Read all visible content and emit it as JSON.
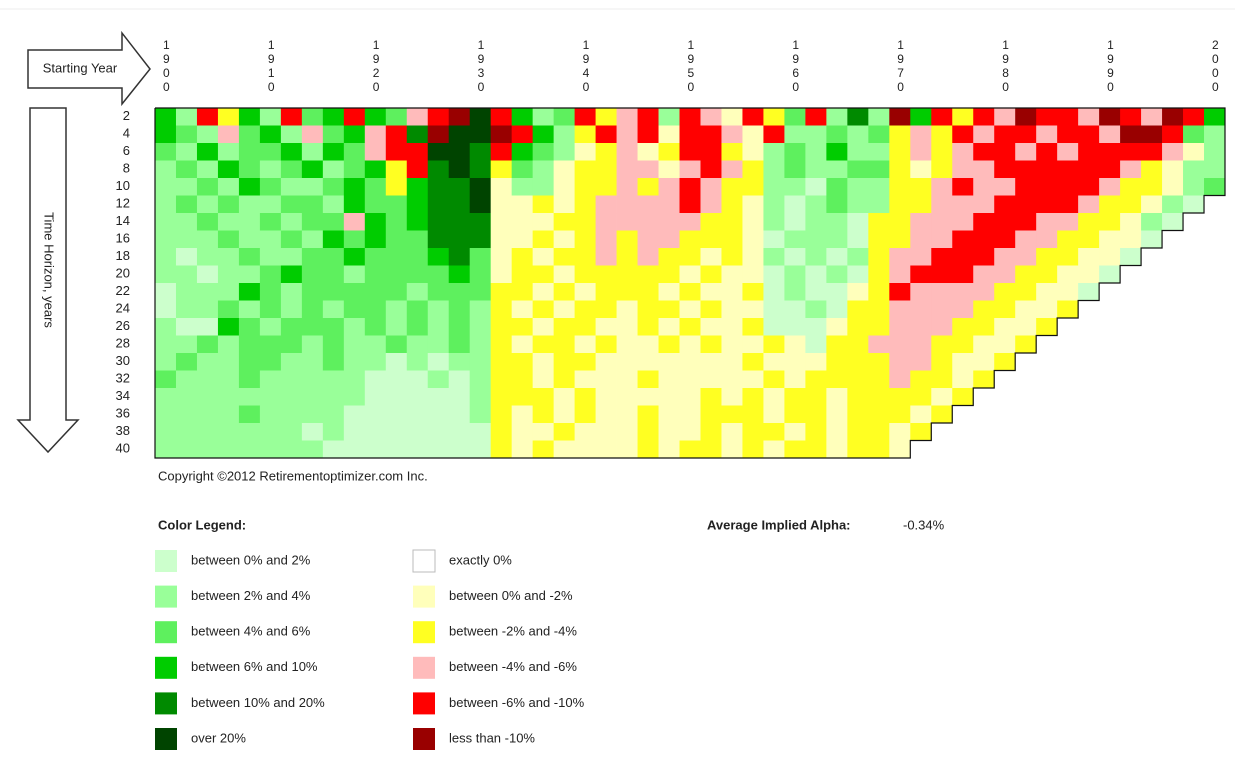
{
  "chart_data": {
    "type": "heatmap",
    "x_label": "Starting Year",
    "y_label": "Time Horizon, years",
    "xlim": [
      1900,
      2002
    ],
    "xticks": [
      1900,
      1910,
      1920,
      1930,
      1940,
      1950,
      1960,
      1970,
      1980,
      1990,
      2000
    ],
    "x": [
      1900,
      1902,
      1904,
      1906,
      1908,
      1910,
      1912,
      1914,
      1916,
      1918,
      1920,
      1922,
      1924,
      1926,
      1928,
      1930,
      1932,
      1934,
      1936,
      1938,
      1940,
      1942,
      1944,
      1946,
      1948,
      1950,
      1952,
      1954,
      1956,
      1958,
      1960,
      1962,
      1964,
      1966,
      1968,
      1970,
      1972,
      1974,
      1976,
      1978,
      1980,
      1982,
      1984,
      1986,
      1988,
      1990,
      1992,
      1994,
      1996,
      1998,
      2000
    ],
    "rows": [
      {
        "horizon": 2,
        "values": [
          3,
          1,
          10,
          8,
          3,
          1,
          10,
          2,
          3,
          10,
          3,
          2,
          9,
          10,
          11,
          5,
          10,
          3,
          1,
          2,
          10,
          8,
          9,
          10,
          1,
          10,
          9,
          7,
          10,
          8,
          2,
          10,
          1,
          4,
          1,
          11,
          3,
          10,
          8,
          10,
          9,
          11,
          10,
          10,
          9,
          11,
          10,
          9,
          11,
          10,
          3
        ]
      },
      {
        "horizon": 4,
        "values": [
          3,
          2,
          1,
          9,
          2,
          3,
          1,
          9,
          2,
          3,
          9,
          10,
          4,
          11,
          5,
          5,
          11,
          10,
          3,
          1,
          8,
          10,
          9,
          10,
          7,
          10,
          10,
          9,
          7,
          10,
          1,
          1,
          2,
          1,
          2,
          8,
          9,
          8,
          10,
          9,
          10,
          10,
          9,
          10,
          10,
          9,
          11,
          11,
          10,
          2,
          1
        ]
      },
      {
        "horizon": 6,
        "values": [
          2,
          1,
          3,
          1,
          2,
          2,
          3,
          1,
          3,
          2,
          9,
          10,
          10,
          5,
          5,
          4,
          10,
          3,
          2,
          1,
          7,
          8,
          9,
          7,
          8,
          10,
          10,
          8,
          7,
          1,
          2,
          1,
          3,
          1,
          1,
          8,
          9,
          8,
          9,
          10,
          10,
          9,
          10,
          9,
          10,
          10,
          10,
          10,
          9,
          7,
          1
        ]
      },
      {
        "horizon": 8,
        "values": [
          1,
          2,
          1,
          3,
          2,
          1,
          2,
          3,
          1,
          2,
          3,
          8,
          10,
          4,
          5,
          4,
          8,
          2,
          1,
          7,
          8,
          8,
          9,
          9,
          7,
          9,
          10,
          9,
          8,
          1,
          2,
          1,
          1,
          2,
          2,
          8,
          7,
          8,
          9,
          9,
          10,
          10,
          10,
          10,
          10,
          10,
          9,
          8,
          7,
          1,
          1
        ]
      },
      {
        "horizon": 10,
        "values": [
          1,
          1,
          2,
          1,
          3,
          2,
          1,
          1,
          2,
          3,
          2,
          8,
          3,
          4,
          4,
          5,
          7,
          1,
          1,
          7,
          8,
          8,
          9,
          8,
          9,
          10,
          9,
          8,
          8,
          1,
          1,
          0,
          2,
          1,
          1,
          8,
          8,
          9,
          10,
          9,
          9,
          10,
          10,
          10,
          10,
          9,
          8,
          8,
          7,
          1,
          2
        ]
      },
      {
        "horizon": 12,
        "values": [
          1,
          2,
          1,
          2,
          1,
          1,
          2,
          2,
          1,
          3,
          2,
          2,
          3,
          4,
          4,
          5,
          7,
          7,
          8,
          7,
          8,
          9,
          9,
          9,
          9,
          10,
          9,
          8,
          7,
          1,
          0,
          1,
          2,
          1,
          1,
          8,
          8,
          9,
          9,
          9,
          10,
          10,
          10,
          10,
          9,
          8,
          8,
          7,
          1,
          0
        ]
      },
      {
        "horizon": 14,
        "values": [
          1,
          1,
          2,
          1,
          1,
          2,
          1,
          2,
          2,
          9,
          3,
          2,
          3,
          4,
          4,
          4,
          7,
          7,
          7,
          8,
          8,
          9,
          9,
          9,
          9,
          9,
          8,
          8,
          7,
          1,
          0,
          1,
          1,
          0,
          8,
          8,
          9,
          9,
          9,
          10,
          10,
          10,
          9,
          9,
          8,
          8,
          7,
          1,
          0
        ]
      },
      {
        "horizon": 16,
        "values": [
          1,
          1,
          1,
          2,
          1,
          1,
          2,
          1,
          3,
          2,
          3,
          2,
          2,
          4,
          4,
          4,
          7,
          7,
          8,
          7,
          8,
          9,
          8,
          9,
          9,
          8,
          8,
          8,
          7,
          0,
          1,
          1,
          1,
          0,
          8,
          8,
          9,
          9,
          10,
          10,
          10,
          9,
          9,
          8,
          8,
          7,
          7,
          0
        ]
      },
      {
        "horizon": 18,
        "values": [
          1,
          0,
          1,
          1,
          2,
          1,
          1,
          2,
          2,
          3,
          2,
          2,
          2,
          3,
          4,
          2,
          7,
          8,
          7,
          8,
          8,
          9,
          8,
          9,
          8,
          8,
          7,
          8,
          7,
          1,
          0,
          1,
          0,
          1,
          8,
          9,
          9,
          10,
          10,
          10,
          9,
          9,
          8,
          8,
          7,
          7,
          0
        ]
      },
      {
        "horizon": 20,
        "values": [
          1,
          1,
          0,
          1,
          1,
          2,
          3,
          2,
          2,
          1,
          2,
          2,
          2,
          2,
          3,
          2,
          7,
          8,
          8,
          7,
          8,
          8,
          8,
          8,
          8,
          7,
          8,
          7,
          7,
          0,
          1,
          0,
          1,
          0,
          8,
          9,
          10,
          10,
          10,
          9,
          9,
          8,
          8,
          7,
          7,
          0
        ]
      },
      {
        "horizon": 22,
        "values": [
          0,
          1,
          1,
          1,
          3,
          2,
          1,
          2,
          2,
          2,
          2,
          2,
          1,
          2,
          2,
          2,
          8,
          8,
          7,
          8,
          7,
          8,
          8,
          8,
          7,
          8,
          7,
          7,
          8,
          0,
          1,
          0,
          0,
          7,
          8,
          10,
          9,
          9,
          9,
          9,
          8,
          8,
          7,
          7,
          0
        ]
      },
      {
        "horizon": 24,
        "values": [
          0,
          1,
          1,
          2,
          1,
          2,
          1,
          2,
          1,
          2,
          2,
          1,
          2,
          1,
          2,
          1,
          8,
          7,
          8,
          7,
          8,
          8,
          7,
          8,
          8,
          7,
          8,
          7,
          7,
          0,
          0,
          1,
          0,
          8,
          8,
          9,
          9,
          9,
          9,
          8,
          8,
          7,
          7,
          8
        ]
      },
      {
        "horizon": 26,
        "values": [
          1,
          0,
          0,
          3,
          2,
          1,
          2,
          2,
          2,
          1,
          2,
          1,
          2,
          1,
          2,
          1,
          8,
          8,
          7,
          8,
          8,
          7,
          7,
          8,
          7,
          8,
          7,
          7,
          8,
          0,
          0,
          0,
          7,
          8,
          8,
          9,
          9,
          9,
          8,
          8,
          7,
          7,
          8
        ]
      },
      {
        "horizon": 28,
        "values": [
          1,
          1,
          2,
          1,
          2,
          2,
          2,
          1,
          2,
          1,
          1,
          2,
          1,
          1,
          2,
          1,
          8,
          7,
          8,
          8,
          7,
          8,
          7,
          7,
          8,
          7,
          8,
          7,
          7,
          8,
          7,
          0,
          8,
          8,
          9,
          9,
          9,
          8,
          8,
          7,
          7,
          8
        ]
      },
      {
        "horizon": 30,
        "values": [
          1,
          2,
          1,
          1,
          2,
          2,
          1,
          1,
          2,
          1,
          1,
          0,
          1,
          0,
          1,
          1,
          8,
          8,
          7,
          8,
          8,
          7,
          7,
          7,
          7,
          7,
          7,
          7,
          8,
          7,
          7,
          7,
          8,
          8,
          8,
          9,
          9,
          8,
          7,
          7,
          8
        ]
      },
      {
        "horizon": 32,
        "values": [
          2,
          1,
          1,
          1,
          2,
          1,
          1,
          1,
          1,
          1,
          0,
          0,
          0,
          1,
          0,
          1,
          8,
          8,
          7,
          8,
          7,
          7,
          7,
          8,
          7,
          7,
          7,
          7,
          7,
          8,
          7,
          8,
          8,
          8,
          8,
          9,
          8,
          8,
          7,
          8
        ]
      },
      {
        "horizon": 34,
        "values": [
          1,
          1,
          1,
          1,
          1,
          1,
          1,
          1,
          1,
          1,
          0,
          0,
          0,
          0,
          0,
          1,
          8,
          8,
          8,
          7,
          8,
          7,
          7,
          7,
          7,
          7,
          8,
          7,
          8,
          7,
          8,
          8,
          7,
          8,
          8,
          8,
          8,
          7,
          8
        ]
      },
      {
        "horizon": 36,
        "values": [
          1,
          1,
          1,
          1,
          2,
          1,
          1,
          1,
          1,
          0,
          0,
          0,
          0,
          0,
          0,
          1,
          8,
          7,
          8,
          7,
          8,
          7,
          7,
          8,
          7,
          7,
          8,
          8,
          8,
          7,
          8,
          8,
          7,
          8,
          8,
          8,
          7,
          8
        ]
      },
      {
        "horizon": 38,
        "values": [
          1,
          1,
          1,
          1,
          1,
          1,
          1,
          0,
          1,
          0,
          0,
          0,
          0,
          0,
          0,
          0,
          8,
          7,
          7,
          8,
          7,
          7,
          7,
          8,
          7,
          7,
          8,
          7,
          8,
          8,
          7,
          8,
          7,
          8,
          8,
          7,
          8
        ]
      },
      {
        "horizon": 40,
        "values": [
          1,
          1,
          1,
          1,
          1,
          1,
          1,
          1,
          0,
          0,
          0,
          0,
          0,
          0,
          0,
          0,
          8,
          7,
          8,
          7,
          7,
          7,
          7,
          8,
          7,
          8,
          8,
          7,
          8,
          7,
          8,
          8,
          7,
          8,
          8,
          7
        ]
      }
    ],
    "copyright": "Copyright ©2012 Retirementoptimizer.com Inc.",
    "legend_title": "Color Legend:",
    "legend": [
      {
        "label": "between 0% and 2%",
        "color": "#ccffcc"
      },
      {
        "label": "between 2% and 4%",
        "color": "#99ff99"
      },
      {
        "label": "between 4% and 6%",
        "color": "#5ef05e"
      },
      {
        "label": "between 6% and 10%",
        "color": "#00cc00"
      },
      {
        "label": "between 10% and 20%",
        "color": "#008a00"
      },
      {
        "label": "over 20%",
        "color": "#004400"
      },
      {
        "label": "exactly 0%",
        "color": "#ffffff"
      },
      {
        "label": "between 0% and -2%",
        "color": "#ffffbb"
      },
      {
        "label": "between -2% and -4%",
        "color": "#ffff22"
      },
      {
        "label": "between -4% and -6%",
        "color": "#ffbbbb"
      },
      {
        "label": "between -6% and -10%",
        "color": "#ff0000"
      },
      {
        "label": "less than -10%",
        "color": "#990000"
      }
    ],
    "average_alpha_label": "Average Implied Alpha:",
    "average_alpha": "-0.34%"
  }
}
